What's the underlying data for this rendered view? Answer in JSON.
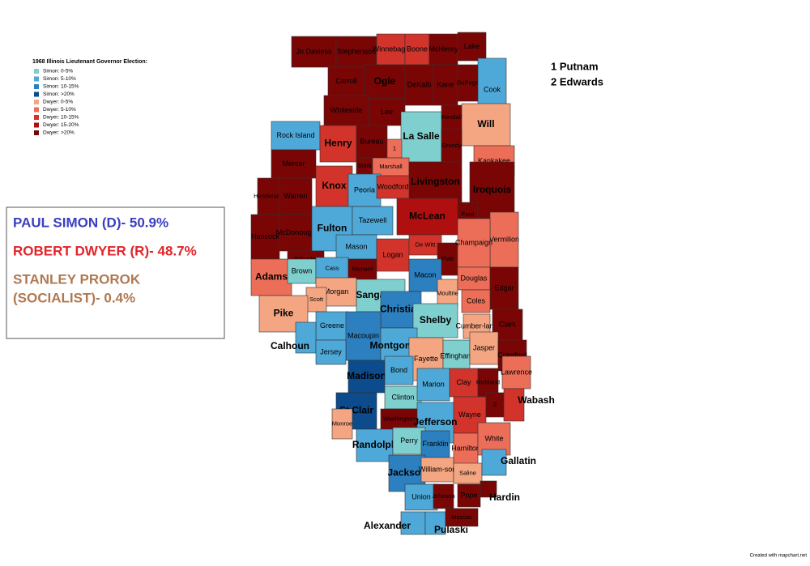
{
  "legend": {
    "title": "1968 Illinois Lieutenant Governor Election:",
    "items": [
      {
        "label": "Simon: 0-5%",
        "color": "#80cfcf"
      },
      {
        "label": "Simon: 5-10%",
        "color": "#4fa9d8"
      },
      {
        "label": "Simon: 10-15%",
        "color": "#2c80c0"
      },
      {
        "label": "Simon: >20%",
        "color": "#0c4b8c"
      },
      {
        "label": "Dwyer: 0-5%",
        "color": "#f4a582"
      },
      {
        "label": "Dwyer: 5-10%",
        "color": "#ec6e58"
      },
      {
        "label": "Dwyer: 10-15%",
        "color": "#d2342b"
      },
      {
        "label": "Dwyer: 15-20%",
        "color": "#b00f0f"
      },
      {
        "label": "Dwyer: >20%",
        "color": "#7a0505"
      }
    ]
  },
  "results": [
    {
      "lines": [
        "PAUL SIMON (D)- 50.9%"
      ],
      "color": "#3a3fc0"
    },
    {
      "lines": [
        "ROBERT DWYER (R)- 48.7%"
      ],
      "color": "#e0242a"
    },
    {
      "lines": [
        "STANLEY PROROK",
        "(SOCIALIST)- 0.4%"
      ],
      "color": "#b07850"
    }
  ],
  "notes": [
    "1 Putnam",
    "2 Edwards"
  ],
  "credit": "Created with mapchart.net",
  "counties": [
    {
      "name": "Jo Daviess",
      "color": "#7a0505"
    },
    {
      "name": "Stephenson",
      "color": "#7a0505"
    },
    {
      "name": "Winnebago",
      "color": "#d2342b"
    },
    {
      "name": "Boone",
      "color": "#d2342b"
    },
    {
      "name": "McHenry",
      "color": "#7a0505"
    },
    {
      "name": "Lake",
      "color": "#7a0505"
    },
    {
      "name": "Carroll",
      "color": "#7a0505"
    },
    {
      "name": "Ogle",
      "color": "#7a0505"
    },
    {
      "name": "DeKalb",
      "color": "#7a0505"
    },
    {
      "name": "Kane",
      "color": "#7a0505"
    },
    {
      "name": "DuPage",
      "color": "#7a0505"
    },
    {
      "name": "Cook",
      "color": "#4fa9d8"
    },
    {
      "name": "Whiteside",
      "color": "#7a0505"
    },
    {
      "name": "Lee",
      "color": "#7a0505"
    },
    {
      "name": "Kendall",
      "color": "#7a0505"
    },
    {
      "name": "Will",
      "color": "#f4a582"
    },
    {
      "name": "Rock Island",
      "color": "#4fa9d8"
    },
    {
      "name": "Henry",
      "color": "#d2342b"
    },
    {
      "name": "Bureau",
      "color": "#7a0505"
    },
    {
      "name": "La Salle",
      "color": "#80cfcf"
    },
    {
      "name": "Grundy",
      "color": "#7a0505"
    },
    {
      "name": "1",
      "color": "#ec6e58"
    },
    {
      "name": "Kankakee",
      "color": "#ec6e58"
    },
    {
      "name": "Mercer",
      "color": "#7a0505"
    },
    {
      "name": "Stark",
      "color": "#7a0505"
    },
    {
      "name": "Marshall",
      "color": "#ec6e58"
    },
    {
      "name": "Livingston",
      "color": "#7a0505"
    },
    {
      "name": "Iroquois",
      "color": "#7a0505"
    },
    {
      "name": "Henderson",
      "color": "#7a0505"
    },
    {
      "name": "Warren",
      "color": "#7a0505"
    },
    {
      "name": "Knox",
      "color": "#d2342b"
    },
    {
      "name": "Peoria",
      "color": "#4fa9d8"
    },
    {
      "name": "Woodford",
      "color": "#d2342b"
    },
    {
      "name": "Hancock",
      "color": "#7a0505"
    },
    {
      "name": "McDonough",
      "color": "#7a0505"
    },
    {
      "name": "Fulton",
      "color": "#4fa9d8"
    },
    {
      "name": "Tazewell",
      "color": "#4fa9d8"
    },
    {
      "name": "McLean",
      "color": "#b00f0f"
    },
    {
      "name": "Ford",
      "color": "#7a0505"
    },
    {
      "name": "Vermilion",
      "color": "#ec6e58"
    },
    {
      "name": "Schuyler",
      "color": "#7a0505"
    },
    {
      "name": "Mason",
      "color": "#4fa9d8"
    },
    {
      "name": "Logan",
      "color": "#d2342b"
    },
    {
      "name": "De Witt",
      "color": "#d2342b"
    },
    {
      "name": "Piatt",
      "color": "#7a0505"
    },
    {
      "name": "Champaign",
      "color": "#ec6e58"
    },
    {
      "name": "Adams",
      "color": "#ec6e58"
    },
    {
      "name": "Brown",
      "color": "#80cfcf"
    },
    {
      "name": "Cass",
      "color": "#4fa9d8"
    },
    {
      "name": "Menard",
      "color": "#7a0505"
    },
    {
      "name": "Macon",
      "color": "#2c80c0"
    },
    {
      "name": "Sangamon",
      "color": "#80cfcf"
    },
    {
      "name": "Morgan",
      "color": "#f4a582"
    },
    {
      "name": "Scott",
      "color": "#f4a582"
    },
    {
      "name": "Pike",
      "color": "#f4a582"
    },
    {
      "name": "Moultrie",
      "color": "#f4a582"
    },
    {
      "name": "Douglas",
      "color": "#ec6e58"
    },
    {
      "name": "Edgar",
      "color": "#7a0505"
    },
    {
      "name": "Coles",
      "color": "#ec6e58"
    },
    {
      "name": "Christian",
      "color": "#2c80c0"
    },
    {
      "name": "Shelby",
      "color": "#80cfcf"
    },
    {
      "name": "Cumber-land",
      "color": "#f4a582"
    },
    {
      "name": "Clark",
      "color": "#7a0505"
    },
    {
      "name": "Greene",
      "color": "#4fa9d8"
    },
    {
      "name": "Macoupin",
      "color": "#2c80c0"
    },
    {
      "name": "Montgomery",
      "color": "#4fa9d8"
    },
    {
      "name": "Calhoun",
      "color": "#4fa9d8"
    },
    {
      "name": "Jersey",
      "color": "#4fa9d8"
    },
    {
      "name": "Fayette",
      "color": "#f4a582"
    },
    {
      "name": "Effingham",
      "color": "#80cfcf"
    },
    {
      "name": "Jasper",
      "color": "#f4a582"
    },
    {
      "name": "Crawford",
      "color": "#7a0505"
    },
    {
      "name": "Madison",
      "color": "#0c4b8c"
    },
    {
      "name": "Bond",
      "color": "#4fa9d8"
    },
    {
      "name": "Clay",
      "color": "#d2342b"
    },
    {
      "name": "Richland",
      "color": "#7a0505"
    },
    {
      "name": "Lawrence",
      "color": "#ec6e58"
    },
    {
      "name": "Clinton",
      "color": "#80cfcf"
    },
    {
      "name": "Marion",
      "color": "#4fa9d8"
    },
    {
      "name": "St Clair",
      "color": "#0c4b8c"
    },
    {
      "name": "Wayne",
      "color": "#d2342b"
    },
    {
      "name": "2",
      "color": "#7a0505"
    },
    {
      "name": "Wabash",
      "color": "#d2342b"
    },
    {
      "name": "Monroe",
      "color": "#f4a582"
    },
    {
      "name": "Washington",
      "color": "#7a0505"
    },
    {
      "name": "Jefferson",
      "color": "#4fa9d8"
    },
    {
      "name": "Randolph",
      "color": "#4fa9d8"
    },
    {
      "name": "Perry",
      "color": "#80cfcf"
    },
    {
      "name": "Franklin",
      "color": "#2c80c0"
    },
    {
      "name": "Hamilton",
      "color": "#ec6e58"
    },
    {
      "name": "White",
      "color": "#ec6e58"
    },
    {
      "name": "Jackson",
      "color": "#2c80c0"
    },
    {
      "name": "William-son",
      "color": "#f4a582"
    },
    {
      "name": "Saline",
      "color": "#f4a582"
    },
    {
      "name": "Gallatin",
      "color": "#4fa9d8"
    },
    {
      "name": "Union",
      "color": "#4fa9d8"
    },
    {
      "name": "Johnson",
      "color": "#7a0505"
    },
    {
      "name": "Pope",
      "color": "#7a0505"
    },
    {
      "name": "Hardin",
      "color": "#7a0505"
    },
    {
      "name": "Alexander",
      "color": "#4fa9d8"
    },
    {
      "name": "Pulaski",
      "color": "#4fa9d8"
    },
    {
      "name": "Massac",
      "color": "#7a0505"
    }
  ]
}
